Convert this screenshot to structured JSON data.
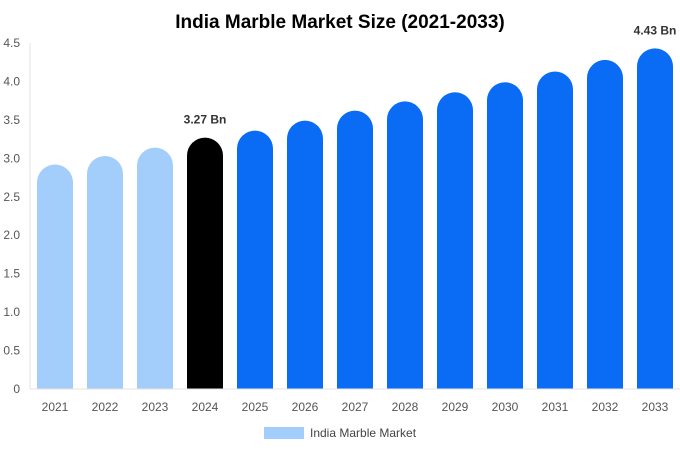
{
  "chart_data": {
    "type": "bar",
    "title": "India Marble Market Size (2021-2033)",
    "categories": [
      "2021",
      "2022",
      "2023",
      "2024",
      "2025",
      "2026",
      "2027",
      "2028",
      "2029",
      "2030",
      "2031",
      "2032",
      "2033"
    ],
    "series": [
      {
        "name": "India Marble Market",
        "values": [
          2.92,
          3.03,
          3.14,
          3.27,
          3.36,
          3.49,
          3.62,
          3.74,
          3.86,
          3.99,
          4.13,
          4.28,
          4.43
        ]
      }
    ],
    "ylim": [
      0,
      4.5
    ],
    "yticks": [
      "0",
      "0.5",
      "1.0",
      "1.5",
      "2.0",
      "2.5",
      "3.0",
      "3.5",
      "4.0",
      "4.5"
    ],
    "data_labels": [
      {
        "category": "2024",
        "text": "3.27 Bn"
      },
      {
        "category": "2033",
        "text": "4.43 Bn"
      }
    ],
    "colors": {
      "historical": "#a3cdfa",
      "base_year": "#000000",
      "forecast": "#0a6cf5",
      "legend_swatch": "#a3cdfa"
    },
    "grid": false,
    "legend_position": "bottom"
  }
}
